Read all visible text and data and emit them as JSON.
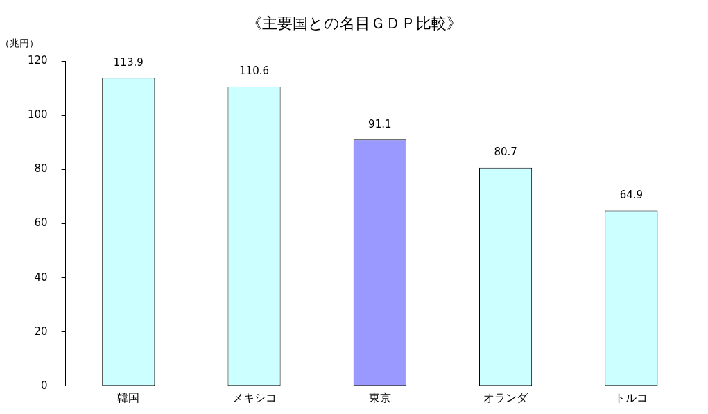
{
  "chart_data": {
    "type": "bar",
    "title": "《主要国との名目ＧＤＰ比較》",
    "ylabel": "（兆円）",
    "categories": [
      "韓国",
      "メキシコ",
      "東京",
      "オランダ",
      "トルコ"
    ],
    "values": [
      113.9,
      110.6,
      91.1,
      80.7,
      64.9
    ],
    "colors": [
      "#ccffff",
      "#ccffff",
      "#9999ff",
      "#ccffff",
      "#ccffff"
    ],
    "ylim": [
      0,
      120
    ],
    "yticks": [
      0,
      20,
      40,
      60,
      80,
      100,
      120
    ],
    "grid": false,
    "data_labels": true
  }
}
